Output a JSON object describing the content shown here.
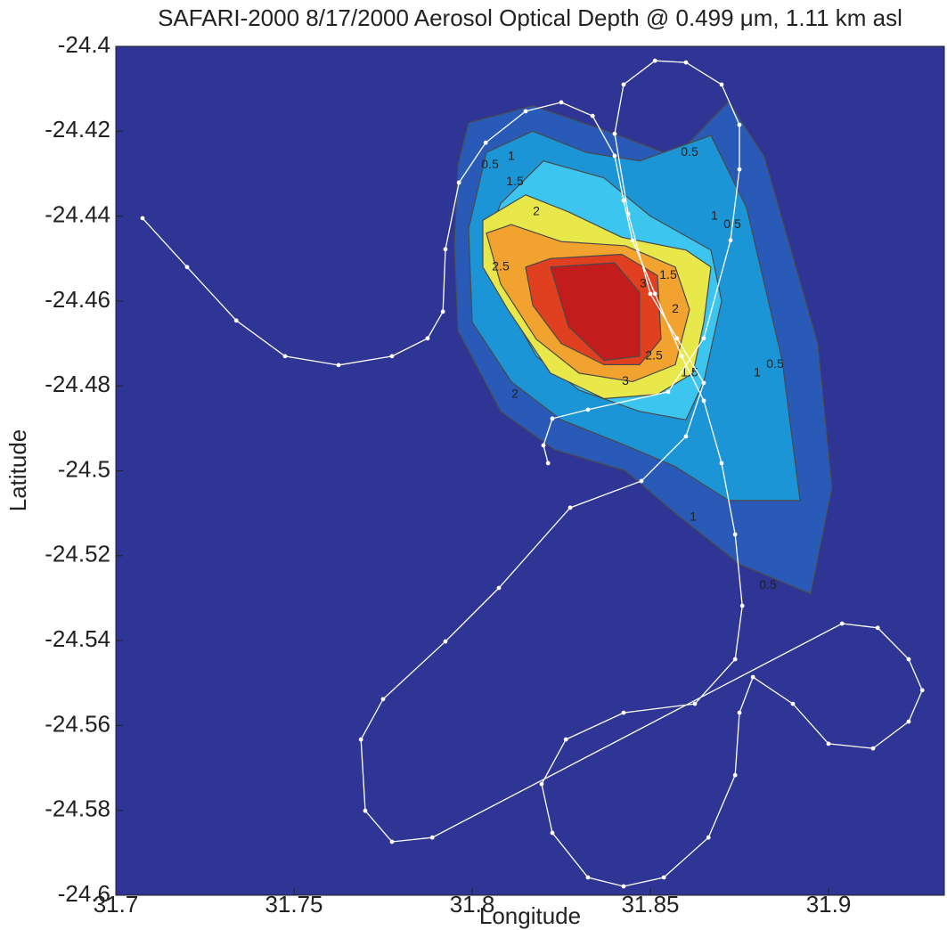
{
  "chart_data": {
    "type": "contour",
    "title": "SAFARI-2000  8/17/2000  Aerosol Optical Depth @ 0.499 μm, 1.11  km asl",
    "xlabel": "Longitude",
    "ylabel": "Latitude",
    "xlim": [
      31.7,
      31.9325
    ],
    "ylim": [
      -24.6,
      -24.4
    ],
    "xticks": [
      31.7,
      31.75,
      31.8,
      31.85,
      31.9
    ],
    "yticks": [
      -24.4,
      -24.42,
      -24.44,
      -24.46,
      -24.48,
      -24.5,
      -24.52,
      -24.54,
      -24.56,
      -24.58,
      -24.6
    ],
    "background": "#2f3595",
    "contour_line_color": "#4a4a4a",
    "levels": [
      {
        "color": "#2a5ab8",
        "x": [
          31.799,
          31.817,
          31.838,
          31.857,
          31.872,
          31.882,
          31.897,
          31.901,
          31.895,
          31.875,
          31.857,
          31.843,
          31.823,
          31.808,
          31.796,
          31.795,
          31.796
        ],
        "y": [
          -24.418,
          -24.414,
          -24.42,
          -24.426,
          -24.413,
          -24.426,
          -24.47,
          -24.504,
          -24.529,
          -24.522,
          -24.51,
          -24.5,
          -24.495,
          -24.486,
          -24.467,
          -24.447,
          -24.428
        ]
      },
      {
        "color": "#1b95d6",
        "x": [
          31.804,
          31.817,
          31.832,
          31.847,
          31.867,
          31.877,
          31.887,
          31.892,
          31.872,
          31.857,
          31.843,
          31.825,
          31.811,
          31.8,
          31.799
        ],
        "y": [
          -24.425,
          -24.42,
          -24.425,
          -24.427,
          -24.421,
          -24.438,
          -24.474,
          -24.507,
          -24.507,
          -24.499,
          -24.494,
          -24.488,
          -24.479,
          -24.465,
          -24.443
        ]
      },
      {
        "color": "#3cc6ef",
        "x": [
          31.808,
          31.82,
          31.837,
          31.85,
          31.867,
          31.87,
          31.865,
          31.86,
          31.847,
          31.83,
          31.818,
          31.808,
          31.804
        ],
        "y": [
          -24.437,
          -24.427,
          -24.431,
          -24.44,
          -24.448,
          -24.46,
          -24.479,
          -24.488,
          -24.486,
          -24.481,
          -24.473,
          -24.458,
          -24.446
        ]
      },
      {
        "color": "#e8e84a",
        "x": [
          31.803,
          31.815,
          31.827,
          31.842,
          31.86,
          31.867,
          31.865,
          31.862,
          31.852,
          31.837,
          31.822,
          31.81,
          31.803
        ],
        "y": [
          -24.441,
          -24.435,
          -24.439,
          -24.445,
          -24.448,
          -24.452,
          -24.465,
          -24.477,
          -24.482,
          -24.483,
          -24.477,
          -24.462,
          -24.452
        ]
      },
      {
        "color": "#f2a22e",
        "x": [
          31.804,
          31.811,
          31.825,
          31.843,
          31.857,
          31.861,
          31.857,
          31.845,
          31.83,
          31.818,
          31.808
        ],
        "y": [
          -24.444,
          -24.442,
          -24.446,
          -24.447,
          -24.452,
          -24.462,
          -24.475,
          -24.479,
          -24.477,
          -24.469,
          -24.456
        ]
      },
      {
        "color": "#e0401f",
        "x": [
          31.815,
          31.822,
          31.842,
          31.852,
          31.853,
          31.847,
          31.837,
          31.825,
          31.817
        ],
        "y": [
          -24.452,
          -24.45,
          -24.449,
          -24.454,
          -24.469,
          -24.475,
          -24.475,
          -24.47,
          -24.461
        ]
      },
      {
        "color": "#c21c1c",
        "x": [
          31.822,
          31.84,
          31.847,
          31.847,
          31.837,
          31.827
        ],
        "y": [
          -24.452,
          -24.451,
          -24.458,
          -24.473,
          -24.474,
          -24.466
        ]
      }
    ],
    "contour_labels": [
      {
        "value": 0.5,
        "x": 31.805,
        "y": -24.428
      },
      {
        "value": 1,
        "x": 31.811,
        "y": -24.426
      },
      {
        "value": 1.5,
        "x": 31.812,
        "y": -24.432
      },
      {
        "value": 2,
        "x": 31.818,
        "y": -24.439
      },
      {
        "value": 2.5,
        "x": 31.808,
        "y": -24.452
      },
      {
        "value": 0.5,
        "x": 31.861,
        "y": -24.425
      },
      {
        "value": 1,
        "x": 31.868,
        "y": -24.44
      },
      {
        "value": 0.5,
        "x": 31.873,
        "y": -24.442
      },
      {
        "value": 1.5,
        "x": 31.855,
        "y": -24.454
      },
      {
        "value": 2,
        "x": 31.857,
        "y": -24.462
      },
      {
        "value": 3,
        "x": 31.848,
        "y": -24.456
      },
      {
        "value": 2.5,
        "x": 31.851,
        "y": -24.473
      },
      {
        "value": 3,
        "x": 31.843,
        "y": -24.479
      },
      {
        "value": 1.5,
        "x": 31.861,
        "y": -24.477
      },
      {
        "value": 1,
        "x": 31.88,
        "y": -24.477
      },
      {
        "value": 0.5,
        "x": 31.885,
        "y": -24.475
      },
      {
        "value": 1,
        "x": 31.862,
        "y": -24.511
      },
      {
        "value": 0.5,
        "x": 31.883,
        "y": -24.527
      },
      {
        "value": 2,
        "x": 31.812,
        "y": -24.482
      }
    ],
    "track": {
      "color": "#ffffff",
      "x": [
        31.7075,
        31.72,
        31.7338,
        31.7475,
        31.7625,
        31.7775,
        31.7875,
        31.7918,
        31.7925,
        31.7963,
        31.8038,
        31.815,
        31.825,
        31.8338,
        31.84,
        31.8425,
        31.845,
        31.8513,
        31.8588,
        31.865,
        31.87,
        31.8738,
        31.8758,
        31.8738,
        31.8625,
        31.8425,
        31.8263,
        31.8195,
        31.8225,
        31.8325,
        31.8425,
        31.8538,
        31.8663,
        31.8738,
        31.875,
        31.8788,
        31.89,
        31.9,
        31.9125,
        31.9225,
        31.9263,
        31.9225,
        31.9138,
        31.9038,
        31.7888,
        31.7775,
        31.77,
        31.7688,
        31.775,
        31.7925,
        31.8075,
        31.8275,
        31.8475,
        31.86,
        31.865,
        31.8575,
        31.85,
        31.8438,
        31.84,
        31.8425,
        31.8513,
        31.86,
        31.87,
        31.875,
        31.875,
        31.8725,
        31.865,
        31.855,
        31.8325,
        31.8225,
        31.82,
        31.8213
      ],
      "y": [
        -24.4405,
        -24.452,
        -24.4646,
        -24.473,
        -24.4751,
        -24.473,
        -24.4688,
        -24.4625,
        -24.4478,
        -24.4321,
        -24.4227,
        -24.4153,
        -24.4132,
        -24.4164,
        -24.4258,
        -24.4363,
        -24.4457,
        -24.4583,
        -24.473,
        -24.4835,
        -24.4982,
        -24.515,
        -24.5318,
        -24.5444,
        -24.5549,
        -24.557,
        -24.5633,
        -24.5738,
        -24.5853,
        -24.5958,
        -24.5979,
        -24.5958,
        -24.5864,
        -24.5717,
        -24.557,
        -24.5486,
        -24.5549,
        -24.5643,
        -24.5654,
        -24.5591,
        -24.5517,
        -24.5444,
        -24.537,
        -24.536,
        -24.5864,
        -24.5874,
        -24.5801,
        -24.5633,
        -24.5538,
        -24.5402,
        -24.5276,
        -24.5087,
        -24.5024,
        -24.4919,
        -24.4793,
        -24.4688,
        -24.4583,
        -24.4395,
        -24.4206,
        -24.409,
        -24.4034,
        -24.4038,
        -24.409,
        -24.4185,
        -24.429,
        -24.4457,
        -24.4688,
        -24.4814,
        -24.4856,
        -24.4877,
        -24.494,
        -24.4982
      ]
    }
  }
}
